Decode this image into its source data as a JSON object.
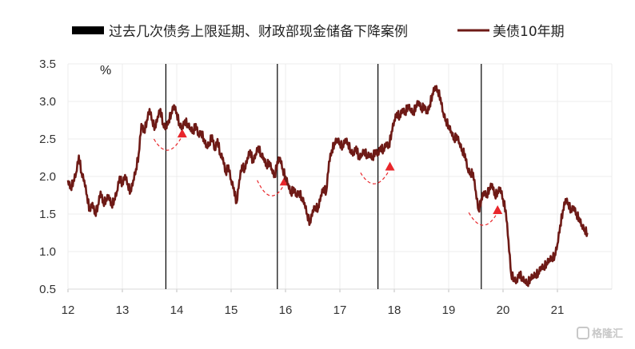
{
  "chart_data": {
    "type": "line",
    "legend": [
      {
        "label": "过去几次债务上限延期、财政部现金储备下降案例",
        "kind": "vline",
        "color": "#000000"
      },
      {
        "label": "美债10年期",
        "kind": "line",
        "color": "#6e1a16"
      }
    ],
    "legend_placement": "top",
    "y_unit": "%",
    "ylim": [
      0.5,
      3.5
    ],
    "yticks": [
      "3.5",
      "3.0",
      "2.5",
      "2.0",
      "1.5",
      "1.0",
      "0.5"
    ],
    "xlim": [
      12,
      22
    ],
    "xticks": [
      "12",
      "13",
      "14",
      "15",
      "16",
      "17",
      "18",
      "19",
      "20",
      "21"
    ],
    "grid": true,
    "series": [
      {
        "name": "美债10年期",
        "color": "#6e1a16",
        "points": [
          [
            12.0,
            1.95
          ],
          [
            12.05,
            1.85
          ],
          [
            12.1,
            1.95
          ],
          [
            12.15,
            2.05
          ],
          [
            12.2,
            2.28
          ],
          [
            12.25,
            2.05
          ],
          [
            12.3,
            1.95
          ],
          [
            12.35,
            1.75
          ],
          [
            12.4,
            1.55
          ],
          [
            12.45,
            1.65
          ],
          [
            12.5,
            1.5
          ],
          [
            12.55,
            1.62
          ],
          [
            12.6,
            1.8
          ],
          [
            12.65,
            1.65
          ],
          [
            12.7,
            1.7
          ],
          [
            12.75,
            1.75
          ],
          [
            12.8,
            1.62
          ],
          [
            12.85,
            1.7
          ],
          [
            12.9,
            1.8
          ],
          [
            12.95,
            2.0
          ],
          [
            13.0,
            1.9
          ],
          [
            13.05,
            2.02
          ],
          [
            13.1,
            1.9
          ],
          [
            13.15,
            1.8
          ],
          [
            13.2,
            1.95
          ],
          [
            13.25,
            2.1
          ],
          [
            13.3,
            2.3
          ],
          [
            13.35,
            2.7
          ],
          [
            13.4,
            2.6
          ],
          [
            13.45,
            2.75
          ],
          [
            13.5,
            2.9
          ],
          [
            13.55,
            2.75
          ],
          [
            13.6,
            2.65
          ],
          [
            13.65,
            2.8
          ],
          [
            13.7,
            2.9
          ],
          [
            13.75,
            2.7
          ],
          [
            13.8,
            2.65
          ],
          [
            13.85,
            2.75
          ],
          [
            13.9,
            2.85
          ],
          [
            13.95,
            2.95
          ],
          [
            14.0,
            2.85
          ],
          [
            14.05,
            2.7
          ],
          [
            14.1,
            2.65
          ],
          [
            14.15,
            2.75
          ],
          [
            14.2,
            2.7
          ],
          [
            14.25,
            2.65
          ],
          [
            14.3,
            2.6
          ],
          [
            14.35,
            2.7
          ],
          [
            14.4,
            2.55
          ],
          [
            14.45,
            2.6
          ],
          [
            14.5,
            2.5
          ],
          [
            14.55,
            2.4
          ],
          [
            14.6,
            2.45
          ],
          [
            14.65,
            2.55
          ],
          [
            14.7,
            2.35
          ],
          [
            14.75,
            2.5
          ],
          [
            14.8,
            2.3
          ],
          [
            14.85,
            2.25
          ],
          [
            14.9,
            2.05
          ],
          [
            14.95,
            2.15
          ],
          [
            15.0,
            1.95
          ],
          [
            15.05,
            1.85
          ],
          [
            15.1,
            1.65
          ],
          [
            15.15,
            1.95
          ],
          [
            15.2,
            2.15
          ],
          [
            15.25,
            2.1
          ],
          [
            15.3,
            2.25
          ],
          [
            15.35,
            2.35
          ],
          [
            15.4,
            2.2
          ],
          [
            15.45,
            2.3
          ],
          [
            15.5,
            2.4
          ],
          [
            15.55,
            2.3
          ],
          [
            15.6,
            2.25
          ],
          [
            15.65,
            2.15
          ],
          [
            15.7,
            2.2
          ],
          [
            15.75,
            2.1
          ],
          [
            15.8,
            2.0
          ],
          [
            15.85,
            2.2
          ],
          [
            15.9,
            2.25
          ],
          [
            15.95,
            2.1
          ],
          [
            16.0,
            2.0
          ],
          [
            16.05,
            1.9
          ],
          [
            16.1,
            1.78
          ],
          [
            16.15,
            1.85
          ],
          [
            16.2,
            1.75
          ],
          [
            16.25,
            1.8
          ],
          [
            16.3,
            1.72
          ],
          [
            16.35,
            1.65
          ],
          [
            16.4,
            1.5
          ],
          [
            16.45,
            1.38
          ],
          [
            16.5,
            1.55
          ],
          [
            16.55,
            1.6
          ],
          [
            16.6,
            1.58
          ],
          [
            16.65,
            1.75
          ],
          [
            16.7,
            1.85
          ],
          [
            16.75,
            1.8
          ],
          [
            16.8,
            2.2
          ],
          [
            16.85,
            2.35
          ],
          [
            16.9,
            2.45
          ],
          [
            16.95,
            2.5
          ],
          [
            17.0,
            2.45
          ],
          [
            17.05,
            2.4
          ],
          [
            17.1,
            2.5
          ],
          [
            17.15,
            2.45
          ],
          [
            17.2,
            2.35
          ],
          [
            17.25,
            2.3
          ],
          [
            17.3,
            2.4
          ],
          [
            17.35,
            2.25
          ],
          [
            17.4,
            2.3
          ],
          [
            17.45,
            2.35
          ],
          [
            17.5,
            2.28
          ],
          [
            17.55,
            2.3
          ],
          [
            17.6,
            2.25
          ],
          [
            17.65,
            2.35
          ],
          [
            17.7,
            2.3
          ],
          [
            17.75,
            2.4
          ],
          [
            17.8,
            2.35
          ],
          [
            17.85,
            2.45
          ],
          [
            17.9,
            2.4
          ],
          [
            17.95,
            2.6
          ],
          [
            18.0,
            2.75
          ],
          [
            18.05,
            2.85
          ],
          [
            18.1,
            2.8
          ],
          [
            18.15,
            2.9
          ],
          [
            18.2,
            2.85
          ],
          [
            18.25,
            2.95
          ],
          [
            18.3,
            2.9
          ],
          [
            18.35,
            2.85
          ],
          [
            18.4,
            2.95
          ],
          [
            18.45,
            3.0
          ],
          [
            18.5,
            2.9
          ],
          [
            18.55,
            2.95
          ],
          [
            18.6,
            2.85
          ],
          [
            18.65,
            2.95
          ],
          [
            18.7,
            3.1
          ],
          [
            18.75,
            3.2
          ],
          [
            18.8,
            3.15
          ],
          [
            18.85,
            3.05
          ],
          [
            18.9,
            2.85
          ],
          [
            18.95,
            2.75
          ],
          [
            19.0,
            2.68
          ],
          [
            19.05,
            2.6
          ],
          [
            19.1,
            2.5
          ],
          [
            19.15,
            2.55
          ],
          [
            19.2,
            2.45
          ],
          [
            19.25,
            2.35
          ],
          [
            19.3,
            2.3
          ],
          [
            19.35,
            2.1
          ],
          [
            19.4,
            2.05
          ],
          [
            19.45,
            2.05
          ],
          [
            19.5,
            1.8
          ],
          [
            19.55,
            1.55
          ],
          [
            19.6,
            1.7
          ],
          [
            19.65,
            1.8
          ],
          [
            19.7,
            1.75
          ],
          [
            19.75,
            1.85
          ],
          [
            19.8,
            1.9
          ],
          [
            19.85,
            1.75
          ],
          [
            19.9,
            1.8
          ],
          [
            19.95,
            1.85
          ],
          [
            20.0,
            1.7
          ],
          [
            20.05,
            1.55
          ],
          [
            20.1,
            1.15
          ],
          [
            20.15,
            0.7
          ],
          [
            20.2,
            0.65
          ],
          [
            20.25,
            0.6
          ],
          [
            20.3,
            0.72
          ],
          [
            20.35,
            0.65
          ],
          [
            20.4,
            0.62
          ],
          [
            20.45,
            0.58
          ],
          [
            20.5,
            0.65
          ],
          [
            20.55,
            0.68
          ],
          [
            20.6,
            0.7
          ],
          [
            20.65,
            0.72
          ],
          [
            20.7,
            0.8
          ],
          [
            20.75,
            0.8
          ],
          [
            20.8,
            0.85
          ],
          [
            20.85,
            0.9
          ],
          [
            20.9,
            0.92
          ],
          [
            20.95,
            0.95
          ],
          [
            21.0,
            1.1
          ],
          [
            21.05,
            1.35
          ],
          [
            21.1,
            1.55
          ],
          [
            21.15,
            1.7
          ],
          [
            21.2,
            1.65
          ],
          [
            21.25,
            1.55
          ],
          [
            21.3,
            1.6
          ],
          [
            21.35,
            1.5
          ],
          [
            21.4,
            1.45
          ],
          [
            21.45,
            1.35
          ],
          [
            21.5,
            1.3
          ],
          [
            21.55,
            1.25
          ]
        ]
      }
    ],
    "event_lines_x": [
      13.8,
      15.85,
      17.7,
      19.6
    ],
    "rebound_arrows": [
      {
        "from": [
          13.58,
          2.5
        ],
        "to": [
          14.1,
          2.52
        ]
      },
      {
        "from": [
          15.48,
          1.95
        ],
        "to": [
          15.98,
          1.88
        ]
      },
      {
        "from": [
          17.38,
          2.05
        ],
        "to": [
          17.92,
          2.08
        ]
      },
      {
        "from": [
          19.37,
          1.52
        ],
        "to": [
          19.9,
          1.5
        ]
      }
    ],
    "watermark": "格隆汇"
  }
}
